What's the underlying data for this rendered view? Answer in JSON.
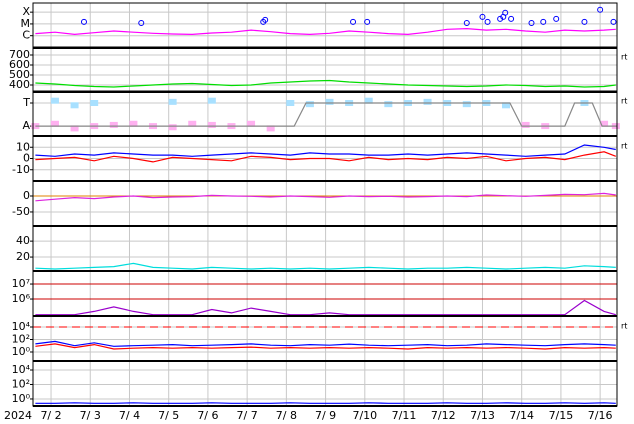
{
  "chart_data": [
    {
      "type": "line",
      "log": true,
      "grid": true,
      "xlim": [
        1.54,
        16.43
      ],
      "ylim": [
        9e-08,
        0.0006
      ],
      "yticks": [
        {
          "value": 0.0001,
          "label": "X"
        },
        {
          "value": 1e-05,
          "label": "M"
        },
        {
          "value": 1e-06,
          "label": "C"
        }
      ],
      "x": [
        1.6,
        2.1,
        2.6,
        3.1,
        3.6,
        4.1,
        4.6,
        5.1,
        5.6,
        6.1,
        6.6,
        7.1,
        7.6,
        8.1,
        8.6,
        9.1,
        9.6,
        10.1,
        10.6,
        11.1,
        11.6,
        12.1,
        12.6,
        13.1,
        13.6,
        14.1,
        14.6,
        15.1,
        15.6,
        16.1,
        16.4
      ],
      "series": [
        {
          "kind": "line",
          "color": "#ff00ff",
          "values": [
            1.5e-06,
            2e-06,
            1.3e-06,
            1.8e-06,
            2.5e-06,
            2e-06,
            1.6e-06,
            1.4e-06,
            1.3e-06,
            1.7e-06,
            2e-06,
            3e-06,
            2.2e-06,
            1.5e-06,
            1.3e-06,
            1.6e-06,
            2.5e-06,
            2e-06,
            1.5e-06,
            1.3e-06,
            2e-06,
            3.5e-06,
            4e-06,
            3e-06,
            3.5e-06,
            2.5e-06,
            2e-06,
            3e-06,
            2.5e-06,
            3e-06,
            3.5e-06
          ]
        },
        {
          "kind": "circles",
          "color": "#0000ff",
          "x": [
            2.84,
            4.3,
            7.41,
            7.46,
            9.7,
            10.06,
            12.6,
            13.0,
            13.13,
            13.45,
            13.53,
            13.58,
            13.73,
            14.25,
            14.55,
            14.88,
            15.6,
            16.0,
            16.34
          ],
          "values": [
            1.5e-05,
            1.2e-05,
            1.5e-05,
            2.2e-05,
            1.5e-05,
            1.5e-05,
            1.2e-05,
            4e-05,
            1.5e-05,
            2.7e-05,
            4e-05,
            9e-05,
            2.7e-05,
            1.2e-05,
            1.5e-05,
            2.7e-05,
            1.5e-05,
            0.00016,
            1.5e-05
          ]
        }
      ]
    },
    {
      "type": "line",
      "grid": true,
      "xlim": [
        1.54,
        16.43
      ],
      "ylim": [
        330,
        780
      ],
      "yticks": [
        400,
        500,
        600,
        700
      ],
      "note": "rt",
      "x": [
        1.6,
        2.1,
        2.6,
        3.1,
        3.6,
        4.1,
        4.6,
        5.1,
        5.6,
        6.1,
        6.6,
        7.1,
        7.6,
        8.1,
        8.6,
        9.1,
        9.6,
        10.1,
        10.6,
        11.1,
        11.6,
        12.1,
        12.6,
        13.1,
        13.6,
        14.1,
        14.6,
        15.1,
        15.6,
        16.1,
        16.4
      ],
      "series": [
        {
          "kind": "line",
          "color": "#00dd00",
          "values": [
            420,
            410,
            395,
            385,
            380,
            390,
            400,
            410,
            415,
            405,
            395,
            400,
            420,
            430,
            440,
            445,
            430,
            420,
            410,
            400,
            395,
            390,
            385,
            390,
            400,
            395,
            385,
            390,
            380,
            385,
            400
          ]
        }
      ]
    },
    {
      "type": "line",
      "grid": true,
      "xlim": [
        1.54,
        16.43
      ],
      "ylim": [
        -0.43,
        1.52
      ],
      "yticks": [
        {
          "value": 1,
          "label": "T"
        },
        {
          "value": 0,
          "label": "A"
        }
      ],
      "note": "rt",
      "x": [
        1.6,
        2.1,
        2.6,
        3.1,
        3.6,
        4.1,
        4.6,
        5.1,
        5.6,
        6.1,
        6.6,
        7.1,
        7.6,
        8.1,
        8.6,
        9.1,
        9.6,
        10.1,
        10.6,
        11.1,
        11.6,
        12.1,
        12.6,
        13.1,
        13.6,
        14.1,
        14.6,
        15.1,
        15.6,
        16.1,
        16.4
      ],
      "series": [
        {
          "kind": "scatter",
          "color": "#ffb0f0",
          "values": [
            0,
            0.1,
            -0.1,
            0,
            0.05,
            0.1,
            0,
            -0.05,
            0.1,
            0.05,
            0,
            0.1,
            -0.1,
            null,
            null,
            null,
            null,
            null,
            null,
            null,
            null,
            null,
            null,
            null,
            null,
            0.05,
            0,
            null,
            null,
            0.1,
            0
          ]
        },
        {
          "kind": "scatter",
          "color": "#a8e0ff",
          "values": [
            null,
            1.1,
            0.9,
            1.0,
            null,
            null,
            null,
            1.05,
            null,
            1.1,
            null,
            null,
            null,
            1.0,
            0.95,
            1.05,
            1.0,
            1.1,
            0.95,
            1.0,
            1.05,
            1.0,
            0.95,
            1.0,
            0.9,
            null,
            null,
            null,
            1.0,
            null,
            null
          ]
        },
        {
          "kind": "line",
          "color": "#888888",
          "x": [
            1.6,
            8.2,
            8.5,
            13.7,
            14.0,
            15.1,
            15.35,
            15.8,
            16.05,
            16.43
          ],
          "values": [
            0,
            0,
            1,
            1,
            0,
            0,
            1,
            1,
            0,
            0
          ]
        }
      ]
    },
    {
      "type": "line",
      "grid": true,
      "xlim": [
        1.54,
        16.43
      ],
      "ylim": [
        -20,
        20
      ],
      "yticks": [
        10,
        0,
        -10
      ],
      "note": "rt",
      "x": [
        1.6,
        2.1,
        2.6,
        3.1,
        3.6,
        4.1,
        4.6,
        5.1,
        5.6,
        6.1,
        6.6,
        7.1,
        7.6,
        8.1,
        8.6,
        9.1,
        9.6,
        10.1,
        10.6,
        11.1,
        11.6,
        12.1,
        12.6,
        13.1,
        13.6,
        14.1,
        14.6,
        15.1,
        15.6,
        16.1,
        16.4
      ],
      "series": [
        {
          "kind": "line",
          "color": "#0000ff",
          "values": [
            3,
            2,
            4,
            3,
            5,
            4,
            3,
            3,
            2,
            3,
            4,
            5,
            4,
            3,
            5,
            4,
            4,
            3,
            3,
            4,
            3,
            4,
            5,
            4,
            3,
            2,
            3,
            4,
            12,
            10,
            8
          ]
        },
        {
          "kind": "line",
          "color": "#ff0000",
          "values": [
            -1,
            0,
            1,
            -2,
            2,
            0,
            -3,
            1,
            0,
            -1,
            -2,
            2,
            1,
            -1,
            0,
            0,
            -2,
            1,
            -1,
            0,
            -1,
            1,
            0,
            2,
            -2,
            0,
            1,
            -1,
            3,
            6,
            2
          ]
        }
      ]
    },
    {
      "type": "line",
      "grid": true,
      "xlim": [
        1.54,
        16.43
      ],
      "ylim": [
        -94,
        47
      ],
      "yticks": [
        0,
        -50
      ],
      "hlines": [
        {
          "value": 0,
          "color": "#e08000"
        }
      ],
      "x": [
        1.6,
        2.1,
        2.6,
        3.1,
        3.6,
        4.1,
        4.6,
        5.1,
        5.6,
        6.1,
        6.6,
        7.1,
        7.6,
        8.1,
        8.6,
        9.1,
        9.6,
        10.1,
        10.6,
        11.1,
        11.6,
        12.1,
        12.6,
        13.1,
        13.6,
        14.1,
        14.6,
        15.1,
        15.6,
        16.1,
        16.4
      ],
      "series": [
        {
          "kind": "line",
          "color": "#dd22dd",
          "values": [
            -15,
            -10,
            -5,
            -8,
            -3,
            0,
            -5,
            -3,
            -2,
            2,
            0,
            -1,
            -3,
            0,
            -2,
            -4,
            0,
            -2,
            -1,
            -3,
            -2,
            0,
            -2,
            3,
            1,
            -1,
            2,
            5,
            4,
            8,
            3
          ]
        }
      ]
    },
    {
      "type": "line",
      "grid": true,
      "xlim": [
        1.54,
        16.43
      ],
      "ylim": [
        2.5,
        59
      ],
      "yticks": [
        40,
        20
      ],
      "x": [
        1.6,
        2.1,
        2.6,
        3.1,
        3.6,
        4.1,
        4.6,
        5.1,
        5.6,
        6.1,
        6.6,
        7.1,
        7.6,
        8.1,
        8.6,
        9.1,
        9.6,
        10.1,
        10.6,
        11.1,
        11.6,
        12.1,
        12.6,
        13.1,
        13.6,
        14.1,
        14.6,
        15.1,
        15.6,
        16.1,
        16.4
      ],
      "series": [
        {
          "kind": "line",
          "color": "#00dddd",
          "values": [
            6,
            5,
            6,
            7,
            8,
            12,
            7,
            6,
            5,
            7,
            6,
            5,
            6,
            5,
            6,
            5,
            6,
            7,
            6,
            5,
            6,
            6,
            7,
            6,
            5,
            6,
            7,
            6,
            9,
            8,
            7
          ]
        }
      ]
    },
    {
      "type": "line",
      "log": true,
      "grid": false,
      "xlim": [
        1.54,
        16.43
      ],
      "ylim": [
        74000,
        74000000
      ],
      "yticks": [
        {
          "value": 10000000,
          "label": "10⁷"
        },
        {
          "value": 1000000,
          "label": "10⁶"
        }
      ],
      "hlines": [
        {
          "value": 10000000,
          "color": "#cc0000"
        },
        {
          "value": 1000000,
          "color": "#cc0000"
        }
      ],
      "x": [
        1.6,
        2.1,
        2.6,
        3.1,
        3.6,
        4.1,
        4.6,
        5.1,
        5.6,
        6.1,
        6.6,
        7.1,
        7.6,
        8.1,
        8.6,
        9.1,
        9.6,
        10.1,
        10.6,
        11.1,
        11.6,
        12.1,
        12.6,
        13.1,
        13.6,
        14.1,
        14.6,
        15.1,
        15.6,
        16.1,
        16.4
      ],
      "series": [
        {
          "kind": "line",
          "color": "#9900cc",
          "values": [
            90000,
            90000,
            90000,
            150000,
            300000,
            150000,
            90000,
            90000,
            90000,
            200000,
            120000,
            250000,
            150000,
            90000,
            90000,
            120000,
            90000,
            90000,
            90000,
            90000,
            90000,
            90000,
            90000,
            90000,
            90000,
            90000,
            90000,
            90000,
            800000,
            150000,
            90000
          ]
        }
      ]
    },
    {
      "type": "line",
      "log": true,
      "grid": true,
      "xlim": [
        1.54,
        16.43
      ],
      "ylim": [
        0.036,
        580000
      ],
      "yticks": [
        {
          "value": 10000,
          "label": "10⁴"
        },
        {
          "value": 100,
          "label": "10²"
        },
        {
          "value": 1,
          "label": "10⁰"
        }
      ],
      "note": "rt",
      "hlines": [
        {
          "value": 10000,
          "color": "#ff0000",
          "dash": "8,5"
        }
      ],
      "x": [
        1.6,
        2.1,
        2.6,
        3.1,
        3.6,
        4.1,
        4.6,
        5.1,
        5.6,
        6.1,
        6.6,
        7.1,
        7.6,
        8.1,
        8.6,
        9.1,
        9.6,
        10.1,
        10.6,
        11.1,
        11.6,
        12.1,
        12.6,
        13.1,
        13.6,
        14.1,
        14.6,
        15.1,
        15.6,
        16.1,
        16.4
      ],
      "series": [
        {
          "kind": "line",
          "color": "#0000ff",
          "values": [
            20,
            50,
            10,
            30,
            8,
            10,
            12,
            15,
            10,
            12,
            15,
            20,
            12,
            10,
            15,
            12,
            18,
            12,
            10,
            12,
            15,
            10,
            12,
            20,
            15,
            12,
            10,
            15,
            20,
            15,
            12
          ]
        },
        {
          "kind": "line",
          "color": "#ff0000",
          "values": [
            8,
            20,
            5,
            15,
            3,
            4,
            5,
            4,
            5,
            4,
            5,
            6,
            4,
            5,
            4,
            5,
            4,
            5,
            4,
            3,
            5,
            4,
            5,
            4,
            5,
            4,
            3,
            5,
            4,
            5,
            4
          ]
        }
      ]
    },
    {
      "type": "line",
      "log": true,
      "grid": true,
      "xlim": [
        1.54,
        16.43
      ],
      "ylim": [
        0.107,
        174000
      ],
      "yticks": [
        {
          "value": 10000,
          "label": "10⁴"
        },
        {
          "value": 100,
          "label": "10²"
        },
        {
          "value": 1,
          "label": "10⁰"
        }
      ],
      "year_label": "2024",
      "xticks": [
        {
          "value": 2,
          "label": "7/ 2"
        },
        {
          "value": 3,
          "label": "7/ 3"
        },
        {
          "value": 4,
          "label": "7/ 4"
        },
        {
          "value": 5,
          "label": "7/ 5"
        },
        {
          "value": 6,
          "label": "7/ 6"
        },
        {
          "value": 7,
          "label": "7/ 7"
        },
        {
          "value": 8,
          "label": "7/ 8"
        },
        {
          "value": 9,
          "label": "7/ 9"
        },
        {
          "value": 10,
          "label": "7/10"
        },
        {
          "value": 11,
          "label": "7/11"
        },
        {
          "value": 12,
          "label": "7/12"
        },
        {
          "value": 13,
          "label": "7/13"
        },
        {
          "value": 14,
          "label": "7/14"
        },
        {
          "value": 15,
          "label": "7/15"
        },
        {
          "value": 16,
          "label": "7/16"
        }
      ],
      "x": [
        1.6,
        2.1,
        2.6,
        3.1,
        3.6,
        4.1,
        4.6,
        5.1,
        5.6,
        6.1,
        6.6,
        7.1,
        7.6,
        8.1,
        8.6,
        9.1,
        9.6,
        10.1,
        10.6,
        11.1,
        11.6,
        12.1,
        12.6,
        13.1,
        13.6,
        14.1,
        14.6,
        15.1,
        15.6,
        16.1,
        16.4
      ],
      "series": [
        {
          "kind": "line",
          "color": "#0000ff",
          "values": [
            0.25,
            0.25,
            0.3,
            0.25,
            0.25,
            0.3,
            0.25,
            0.25,
            0.25,
            0.3,
            0.25,
            0.25,
            0.25,
            0.3,
            0.25,
            0.25,
            0.25,
            0.3,
            0.25,
            0.25,
            0.25,
            0.3,
            0.25,
            0.25,
            0.3,
            0.25,
            0.25,
            0.3,
            0.25,
            0.3,
            0.25
          ]
        }
      ]
    }
  ]
}
